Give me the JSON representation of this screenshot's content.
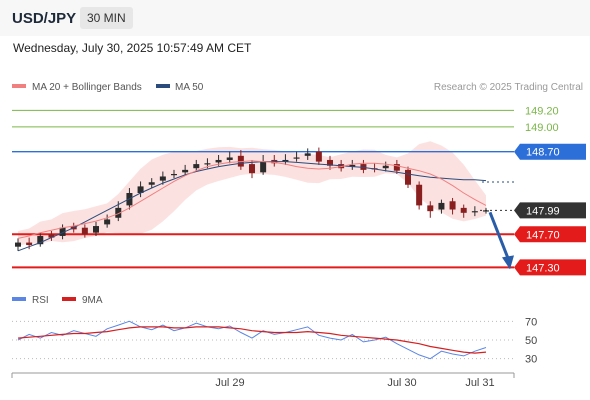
{
  "header": {
    "pair": "USD/JPY",
    "timeframe": "30 MIN",
    "timestamp": "Wednesday, July 30, 2025 10:57:49 AM CET"
  },
  "legend": {
    "ma20_label": "MA 20 + Bollinger Bands",
    "ma20_color": "#f08080",
    "ma50_label": "MA 50",
    "ma50_color": "#2a4b7c",
    "credit": "Research © 2025 Trading Central"
  },
  "chart_data": [
    {
      "type": "candlestick",
      "title": "",
      "x_labels": [
        "Jul 29",
        "Jul 30",
        "Jul 31"
      ],
      "ylim": [
        147.05,
        149.35
      ],
      "price_levels": [
        {
          "label": "149.20",
          "value": 149.2,
          "kind": "resistance-target",
          "color": "#7ab648"
        },
        {
          "label": "149.00",
          "value": 149.0,
          "kind": "resistance-target",
          "color": "#7ab648"
        },
        {
          "label": "148.70",
          "value": 148.7,
          "kind": "pivot",
          "color": "#2d6fd8"
        },
        {
          "label": "147.99",
          "value": 147.99,
          "kind": "last-price",
          "color": "#333333"
        },
        {
          "label": "147.70",
          "value": 147.7,
          "kind": "support-target",
          "color": "#e41b1b"
        },
        {
          "label": "147.30",
          "value": 147.3,
          "kind": "support-target",
          "color": "#e41b1b"
        }
      ],
      "series": [
        {
          "name": "MA 20 + Bollinger Bands",
          "values": [
            147.65,
            147.68,
            147.72,
            147.75,
            147.78,
            147.8,
            147.83,
            147.86,
            147.9,
            147.95,
            148.02,
            148.1,
            148.18,
            148.26,
            148.34,
            148.41,
            148.47,
            148.52,
            148.55,
            148.57,
            148.58,
            148.59,
            148.58,
            148.57,
            148.55,
            148.52,
            148.5,
            148.49,
            148.5,
            148.52,
            148.55,
            148.56,
            148.56,
            148.55,
            148.53,
            148.5,
            148.47,
            148.43,
            148.37,
            148.29,
            148.2,
            148.12,
            148.05
          ]
        },
        {
          "name": "MA 50",
          "values": [
            147.5,
            147.55,
            147.6,
            147.66,
            147.72,
            147.78,
            147.85,
            147.92,
            147.99,
            148.06,
            148.13,
            148.2,
            148.26,
            148.32,
            148.37,
            148.42,
            148.46,
            148.49,
            148.52,
            148.54,
            148.56,
            148.57,
            148.58,
            148.58,
            148.58,
            148.57,
            148.56,
            148.55,
            148.54,
            148.53,
            148.52,
            148.51,
            148.49,
            148.47,
            148.45,
            148.43,
            148.41,
            148.39,
            148.38,
            148.37,
            148.36,
            148.36,
            148.35
          ]
        }
      ],
      "candles": {
        "open": [
          147.55,
          147.6,
          147.58,
          147.7,
          147.68,
          147.8,
          147.78,
          147.72,
          147.82,
          147.9,
          148.05,
          148.2,
          148.3,
          148.35,
          148.42,
          148.45,
          148.5,
          148.55,
          148.57,
          148.6,
          148.65,
          148.55,
          148.45,
          148.6,
          148.58,
          148.62,
          148.65,
          148.7,
          148.6,
          148.55,
          148.52,
          148.55,
          148.5,
          148.5,
          148.55,
          148.48,
          148.3,
          148.05,
          148.0,
          148.1,
          148.02,
          147.98,
          147.99
        ],
        "close": [
          147.6,
          147.57,
          147.68,
          147.66,
          147.78,
          147.76,
          147.7,
          147.8,
          147.88,
          148.02,
          148.2,
          148.28,
          148.33,
          148.4,
          148.43,
          148.48,
          148.55,
          148.56,
          148.6,
          148.63,
          148.52,
          148.44,
          148.58,
          148.56,
          148.6,
          148.63,
          148.68,
          148.58,
          148.53,
          148.5,
          148.54,
          148.48,
          148.49,
          148.53,
          148.47,
          148.3,
          148.05,
          147.98,
          148.08,
          148.0,
          147.96,
          147.98,
          147.99
        ],
        "high": [
          147.65,
          147.66,
          147.72,
          147.74,
          147.82,
          147.84,
          147.82,
          147.85,
          147.94,
          148.1,
          148.26,
          148.34,
          148.38,
          148.46,
          148.48,
          148.54,
          148.6,
          148.62,
          148.66,
          148.7,
          148.72,
          148.6,
          148.66,
          148.66,
          148.67,
          148.7,
          148.74,
          148.75,
          148.65,
          148.6,
          148.6,
          148.6,
          148.56,
          148.58,
          148.6,
          148.52,
          148.34,
          148.1,
          148.12,
          148.14,
          148.06,
          148.04,
          148.02
        ],
        "low": [
          147.5,
          147.52,
          147.55,
          147.62,
          147.64,
          147.72,
          147.66,
          147.68,
          147.78,
          147.86,
          148.0,
          148.15,
          148.26,
          148.3,
          148.38,
          148.41,
          148.46,
          148.5,
          148.53,
          148.56,
          148.48,
          148.38,
          148.42,
          148.52,
          148.54,
          148.58,
          148.6,
          148.54,
          148.48,
          148.46,
          148.48,
          148.44,
          148.45,
          148.46,
          148.43,
          148.26,
          148.0,
          147.9,
          147.95,
          147.94,
          147.9,
          147.92,
          147.95
        ]
      }
    },
    {
      "type": "line",
      "ylim": [
        20,
        80
      ],
      "y_ticks": [
        "70",
        "50",
        "30"
      ],
      "series": [
        {
          "name": "RSI",
          "color": "#5b86e5",
          "values": [
            50,
            56,
            52,
            58,
            55,
            60,
            57,
            54,
            62,
            66,
            70,
            64,
            61,
            66,
            60,
            63,
            68,
            64,
            62,
            65,
            58,
            52,
            60,
            56,
            58,
            61,
            64,
            55,
            52,
            50,
            56,
            48,
            50,
            53,
            46,
            40,
            34,
            30,
            38,
            35,
            33,
            38,
            42
          ]
        },
        {
          "name": "9MA",
          "color": "#d62020",
          "values": [
            52,
            53,
            54,
            55,
            56,
            57,
            57,
            58,
            59,
            61,
            63,
            64,
            64,
            64,
            63,
            63,
            64,
            64,
            64,
            63,
            62,
            60,
            59,
            58,
            58,
            58,
            59,
            58,
            57,
            55,
            54,
            53,
            52,
            51,
            50,
            48,
            46,
            43,
            41,
            39,
            37,
            36,
            37
          ]
        }
      ]
    }
  ]
}
